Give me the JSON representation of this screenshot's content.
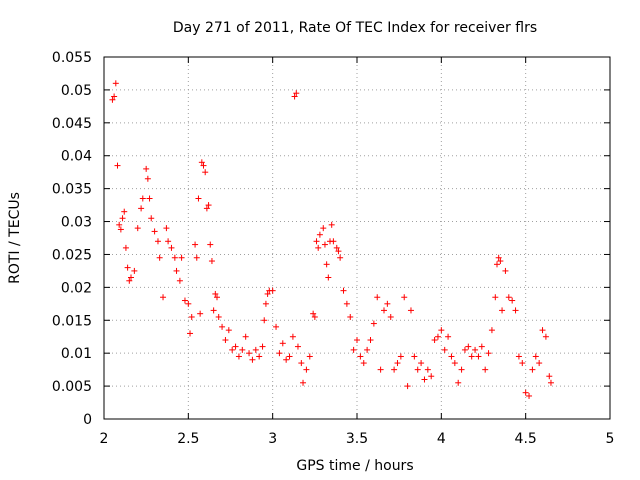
{
  "chart_data": {
    "type": "scatter",
    "title": "Day 271 of 2011, Rate Of TEC Index for receiver flrs",
    "xlabel": "GPS time / hours",
    "ylabel": "ROTI / TECUs",
    "xlim": [
      2,
      5
    ],
    "ylim": [
      0,
      0.055
    ],
    "xticks": [
      "2",
      "2.5",
      "3",
      "3.5",
      "4",
      "4.5",
      "5"
    ],
    "yticks": [
      "0",
      "0.005",
      "0.01",
      "0.015",
      "0.02",
      "0.025",
      "0.03",
      "0.035",
      "0.04",
      "0.045",
      "0.05",
      "0.055"
    ],
    "grid": true,
    "marker": "+",
    "series": [
      {
        "name": "ROTI",
        "color": "#ff0000",
        "points": [
          [
            2.05,
            0.0485
          ],
          [
            2.06,
            0.049
          ],
          [
            2.07,
            0.051
          ],
          [
            2.08,
            0.0385
          ],
          [
            2.09,
            0.0295
          ],
          [
            2.1,
            0.0288
          ],
          [
            2.11,
            0.0305
          ],
          [
            2.12,
            0.0315
          ],
          [
            2.13,
            0.026
          ],
          [
            2.14,
            0.023
          ],
          [
            2.15,
            0.021
          ],
          [
            2.16,
            0.0215
          ],
          [
            2.18,
            0.0225
          ],
          [
            2.2,
            0.029
          ],
          [
            2.22,
            0.032
          ],
          [
            2.23,
            0.0335
          ],
          [
            2.25,
            0.038
          ],
          [
            2.26,
            0.0365
          ],
          [
            2.27,
            0.0335
          ],
          [
            2.28,
            0.0305
          ],
          [
            2.3,
            0.0285
          ],
          [
            2.32,
            0.027
          ],
          [
            2.33,
            0.0245
          ],
          [
            2.35,
            0.0185
          ],
          [
            2.37,
            0.029
          ],
          [
            2.38,
            0.027
          ],
          [
            2.4,
            0.026
          ],
          [
            2.42,
            0.0245
          ],
          [
            2.43,
            0.0225
          ],
          [
            2.45,
            0.021
          ],
          [
            2.46,
            0.0245
          ],
          [
            2.48,
            0.018
          ],
          [
            2.5,
            0.0175
          ],
          [
            2.51,
            0.013
          ],
          [
            2.52,
            0.0155
          ],
          [
            2.54,
            0.0265
          ],
          [
            2.55,
            0.0245
          ],
          [
            2.56,
            0.0335
          ],
          [
            2.57,
            0.016
          ],
          [
            2.58,
            0.039
          ],
          [
            2.59,
            0.0385
          ],
          [
            2.6,
            0.0375
          ],
          [
            2.61,
            0.032
          ],
          [
            2.62,
            0.0325
          ],
          [
            2.63,
            0.0265
          ],
          [
            2.64,
            0.024
          ],
          [
            2.65,
            0.0165
          ],
          [
            2.66,
            0.019
          ],
          [
            2.67,
            0.0185
          ],
          [
            2.68,
            0.0155
          ],
          [
            2.7,
            0.014
          ],
          [
            2.72,
            0.012
          ],
          [
            2.74,
            0.0135
          ],
          [
            2.76,
            0.0105
          ],
          [
            2.78,
            0.011
          ],
          [
            2.8,
            0.0095
          ],
          [
            2.82,
            0.0105
          ],
          [
            2.84,
            0.0125
          ],
          [
            2.86,
            0.01
          ],
          [
            2.88,
            0.009
          ],
          [
            2.9,
            0.0105
          ],
          [
            2.92,
            0.0095
          ],
          [
            2.94,
            0.011
          ],
          [
            2.95,
            0.015
          ],
          [
            2.96,
            0.0175
          ],
          [
            2.97,
            0.019
          ],
          [
            2.98,
            0.0195
          ],
          [
            3.0,
            0.0195
          ],
          [
            3.02,
            0.014
          ],
          [
            3.04,
            0.01
          ],
          [
            3.06,
            0.0115
          ],
          [
            3.08,
            0.009
          ],
          [
            3.1,
            0.0095
          ],
          [
            3.12,
            0.0125
          ],
          [
            3.13,
            0.049
          ],
          [
            3.14,
            0.0495
          ],
          [
            3.15,
            0.011
          ],
          [
            3.17,
            0.0085
          ],
          [
            3.18,
            0.0055
          ],
          [
            3.2,
            0.0075
          ],
          [
            3.22,
            0.0095
          ],
          [
            3.24,
            0.016
          ],
          [
            3.25,
            0.0155
          ],
          [
            3.26,
            0.027
          ],
          [
            3.27,
            0.026
          ],
          [
            3.28,
            0.028
          ],
          [
            3.3,
            0.029
          ],
          [
            3.31,
            0.0265
          ],
          [
            3.32,
            0.0235
          ],
          [
            3.33,
            0.0215
          ],
          [
            3.34,
            0.027
          ],
          [
            3.35,
            0.0295
          ],
          [
            3.36,
            0.027
          ],
          [
            3.38,
            0.026
          ],
          [
            3.39,
            0.0255
          ],
          [
            3.4,
            0.0245
          ],
          [
            3.42,
            0.0195
          ],
          [
            3.44,
            0.0175
          ],
          [
            3.46,
            0.0155
          ],
          [
            3.48,
            0.0105
          ],
          [
            3.5,
            0.012
          ],
          [
            3.52,
            0.0095
          ],
          [
            3.54,
            0.0085
          ],
          [
            3.56,
            0.0105
          ],
          [
            3.58,
            0.012
          ],
          [
            3.6,
            0.0145
          ],
          [
            3.62,
            0.0185
          ],
          [
            3.64,
            0.0075
          ],
          [
            3.66,
            0.0165
          ],
          [
            3.68,
            0.0175
          ],
          [
            3.7,
            0.0155
          ],
          [
            3.72,
            0.0075
          ],
          [
            3.74,
            0.0085
          ],
          [
            3.76,
            0.0095
          ],
          [
            3.78,
            0.0185
          ],
          [
            3.8,
            0.005
          ],
          [
            3.82,
            0.0165
          ],
          [
            3.84,
            0.0095
          ],
          [
            3.86,
            0.0075
          ],
          [
            3.88,
            0.0085
          ],
          [
            3.9,
            0.006
          ],
          [
            3.92,
            0.0075
          ],
          [
            3.94,
            0.0065
          ],
          [
            3.96,
            0.012
          ],
          [
            3.98,
            0.0125
          ],
          [
            4.0,
            0.0135
          ],
          [
            4.02,
            0.0105
          ],
          [
            4.04,
            0.0125
          ],
          [
            4.06,
            0.0095
          ],
          [
            4.08,
            0.0085
          ],
          [
            4.1,
            0.0055
          ],
          [
            4.12,
            0.0075
          ],
          [
            4.14,
            0.0105
          ],
          [
            4.16,
            0.011
          ],
          [
            4.18,
            0.0095
          ],
          [
            4.2,
            0.0105
          ],
          [
            4.22,
            0.0095
          ],
          [
            4.24,
            0.011
          ],
          [
            4.26,
            0.0075
          ],
          [
            4.28,
            0.01
          ],
          [
            4.3,
            0.0135
          ],
          [
            4.32,
            0.0185
          ],
          [
            4.33,
            0.0235
          ],
          [
            4.34,
            0.0245
          ],
          [
            4.35,
            0.024
          ],
          [
            4.36,
            0.0165
          ],
          [
            4.38,
            0.0225
          ],
          [
            4.4,
            0.0185
          ],
          [
            4.42,
            0.018
          ],
          [
            4.44,
            0.0165
          ],
          [
            4.46,
            0.0095
          ],
          [
            4.48,
            0.0085
          ],
          [
            4.5,
            0.004
          ],
          [
            4.52,
            0.0035
          ],
          [
            4.54,
            0.0075
          ],
          [
            4.56,
            0.0095
          ],
          [
            4.58,
            0.0085
          ],
          [
            4.6,
            0.0135
          ],
          [
            4.62,
            0.0125
          ],
          [
            4.64,
            0.0065
          ],
          [
            4.65,
            0.0055
          ]
        ]
      }
    ]
  }
}
